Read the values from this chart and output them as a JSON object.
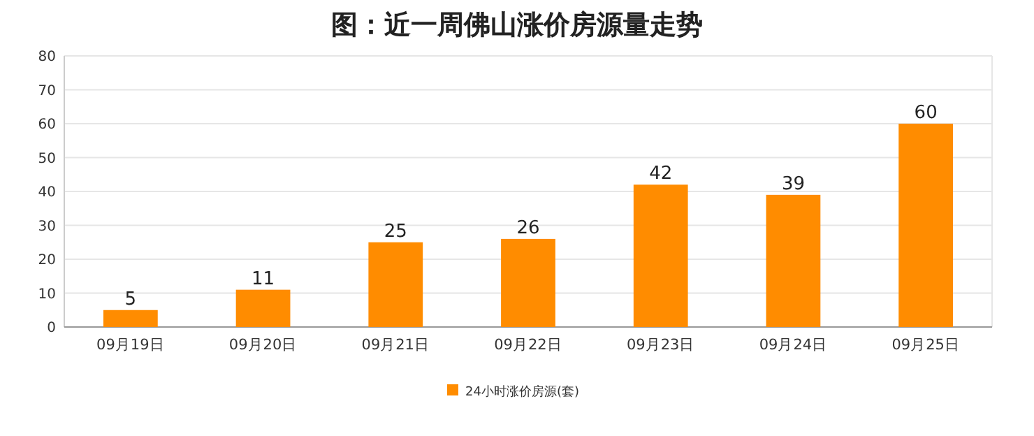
{
  "chart_data": {
    "type": "bar",
    "title": "图：近一周佛山涨价房源量走势",
    "categories": [
      "09月19日",
      "09月20日",
      "09月21日",
      "09月22日",
      "09月23日",
      "09月24日",
      "09月25日"
    ],
    "series": [
      {
        "name": "24小时涨价房源(套)",
        "color": "#ff8c00",
        "values": [
          5,
          11,
          25,
          26,
          42,
          39,
          60
        ]
      }
    ],
    "ylim": [
      0,
      80
    ],
    "yticks": [
      0,
      10,
      20,
      30,
      40,
      50,
      60,
      70,
      80
    ],
    "grid": "y",
    "legend": "bottom",
    "data_labels": true
  }
}
